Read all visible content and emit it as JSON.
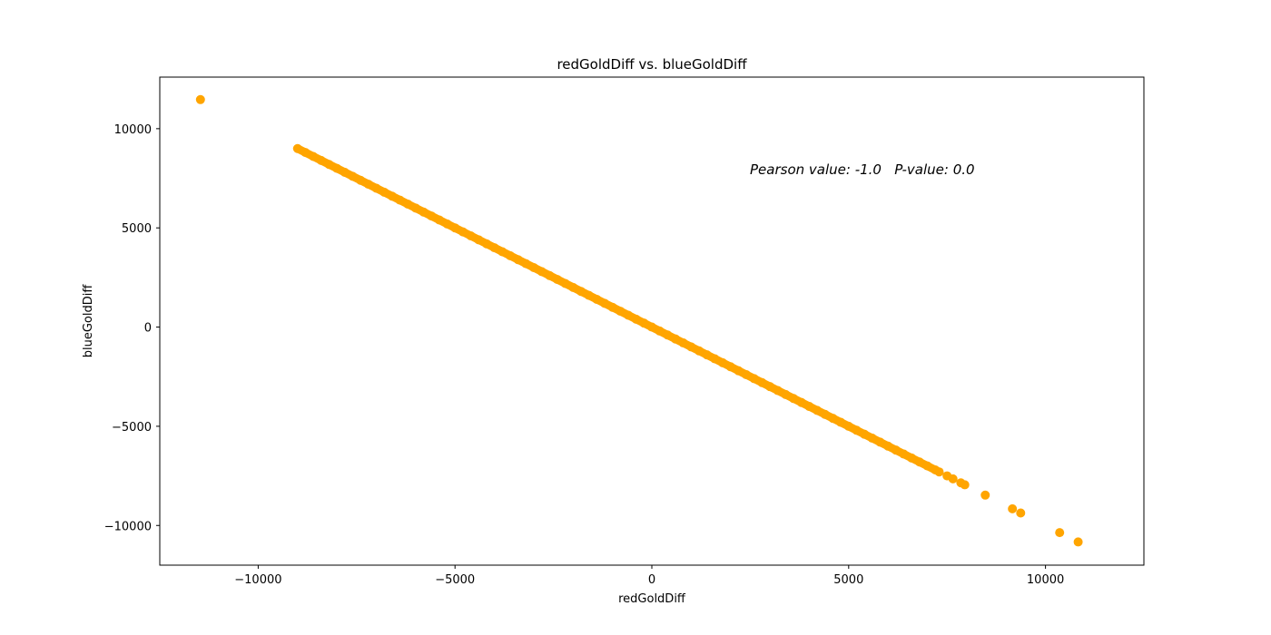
{
  "chart_data": {
    "type": "scatter",
    "title": "redGoldDiff vs. blueGoldDiff",
    "xlabel": "redGoldDiff",
    "ylabel": "blueGoldDiff",
    "xlim": [
      -12500,
      12500
    ],
    "ylim": [
      -12000,
      12600
    ],
    "xticks": [
      -10000,
      -5000,
      0,
      5000,
      10000
    ],
    "xtick_labels": [
      "−10000",
      "−5000",
      "0",
      "5000",
      "10000"
    ],
    "yticks": [
      -10000,
      -5000,
      0,
      5000,
      10000
    ],
    "ytick_labels": [
      "−10000",
      "−5000",
      "0",
      "5000",
      "10000"
    ],
    "grid": false,
    "marker_color": "#ffa500",
    "annotation": "Pearson value: -1.0   P-value: 0.0",
    "series": [
      {
        "points": {
          "x": [
            -11467,
            -9000,
            -8800,
            -8600,
            -8400,
            -8200,
            -8000,
            -7800,
            -7600,
            -7400,
            -7200,
            -7000,
            -6800,
            -6600,
            -6400,
            -6200,
            -6000,
            -5800,
            -5600,
            -5400,
            -5200,
            -5000,
            -4800,
            -4600,
            -4400,
            -4200,
            -4000,
            -3800,
            -3600,
            -3400,
            -3200,
            -3000,
            -2800,
            -2600,
            -2400,
            -2200,
            -2000,
            -1800,
            -1600,
            -1400,
            -1200,
            -1000,
            -800,
            -600,
            -400,
            -200,
            0,
            200,
            400,
            600,
            800,
            1000,
            1200,
            1400,
            1600,
            1800,
            2000,
            2200,
            2400,
            2600,
            2800,
            3000,
            3200,
            3400,
            3600,
            3800,
            4000,
            4200,
            4400,
            4600,
            4800,
            5000,
            5200,
            5400,
            5600,
            5800,
            6000,
            6200,
            6400,
            6600,
            6800,
            7000,
            7200,
            7300,
            7500,
            7650,
            7850,
            7950,
            8470,
            9160,
            9370,
            10360,
            10830
          ],
          "y": [
            11467,
            9000,
            8800,
            8600,
            8400,
            8200,
            8000,
            7800,
            7600,
            7400,
            7200,
            7000,
            6800,
            6600,
            6400,
            6200,
            6000,
            5800,
            5600,
            5400,
            5200,
            5000,
            4800,
            4600,
            4400,
            4200,
            4000,
            3800,
            3600,
            3400,
            3200,
            3000,
            2800,
            2600,
            2400,
            2200,
            2000,
            1800,
            1600,
            1400,
            1200,
            1000,
            800,
            600,
            400,
            200,
            0,
            -200,
            -400,
            -600,
            -800,
            -1000,
            -1200,
            -1400,
            -1600,
            -1800,
            -2000,
            -2200,
            -2400,
            -2600,
            -2800,
            -3000,
            -3200,
            -3400,
            -3600,
            -3800,
            -4000,
            -4200,
            -4400,
            -4600,
            -4800,
            -5000,
            -5200,
            -5400,
            -5600,
            -5800,
            -6000,
            -6200,
            -6400,
            -6600,
            -6800,
            -7000,
            -7200,
            -7300,
            -7500,
            -7650,
            -7850,
            -7950,
            -8470,
            -9160,
            -9370,
            -10360,
            -10830
          ]
        },
        "dense_segment": {
          "from_x": -9000,
          "to_x": 7300
        }
      }
    ]
  }
}
